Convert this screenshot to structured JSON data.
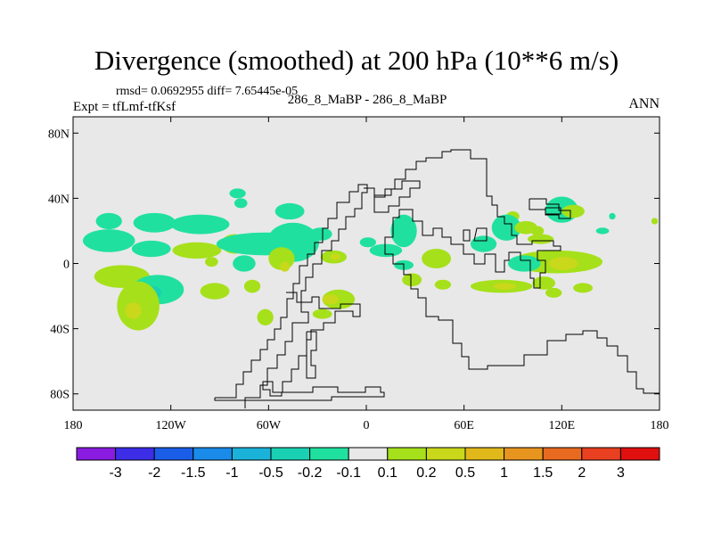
{
  "chart_data": {
    "type": "contour-map",
    "title": "Divergence (smoothed) at 200 hPa (10**6 m/s)",
    "stats": "rmsd= 0.0692955 diff= 7.65445e-05",
    "experiment": "Expt = tfLmf-tfKsf",
    "cases": "286_8_MaBP - 286_8_MaBP",
    "season": "ANN",
    "x_ticks": [
      "180",
      "120W",
      "60W",
      "0",
      "60E",
      "120E",
      "180"
    ],
    "x_tick_values": [
      -180,
      -120,
      -60,
      0,
      60,
      120,
      180
    ],
    "y_ticks": [
      "80N",
      "40N",
      "0",
      "40S",
      "80S"
    ],
    "y_tick_values": [
      80,
      40,
      0,
      -40,
      -80
    ],
    "xlim": [
      -180,
      180
    ],
    "ylim": [
      -90,
      90
    ],
    "levels": [
      "-3",
      "-2",
      "-1.5",
      "-1",
      "-0.5",
      "-0.2",
      "-0.1",
      "0.1",
      "0.2",
      "0.5",
      "1",
      "1.5",
      "2",
      "3"
    ],
    "colors": [
      "#8a1be0",
      "#3b2ee6",
      "#1a5ee8",
      "#1a8be8",
      "#1ab2d9",
      "#1ad0b2",
      "#20e0a0",
      "#e8e8e8",
      "#a6e01a",
      "#c9d81a",
      "#e0b81a",
      "#e89520",
      "#e86a20",
      "#e84020",
      "#e01010"
    ],
    "background_color": "#e8e8e8",
    "blobs": [
      {
        "lon": -158,
        "lat": 26,
        "rx": 8,
        "ry": 5,
        "level": -0.1
      },
      {
        "lon": -158,
        "lat": 14,
        "rx": 16,
        "ry": 7,
        "level": -0.1
      },
      {
        "lon": -130,
        "lat": 25,
        "rx": 13,
        "ry": 6,
        "level": -0.1
      },
      {
        "lon": -132,
        "lat": 9,
        "rx": 12,
        "ry": 5,
        "level": -0.1
      },
      {
        "lon": -150,
        "lat": -8,
        "rx": 17,
        "ry": 7,
        "level": 0.1
      },
      {
        "lon": -128,
        "lat": -16,
        "rx": 16,
        "ry": 9,
        "level": -0.1
      },
      {
        "lon": -130,
        "lat": -18,
        "rx": 4,
        "ry": 4,
        "level": -0.2
      },
      {
        "lon": -140,
        "lat": -26,
        "rx": 13,
        "ry": 15,
        "level": 0.1
      },
      {
        "lon": -143,
        "lat": -29,
        "rx": 5,
        "ry": 5,
        "level": 0.2
      },
      {
        "lon": -102,
        "lat": 24,
        "rx": 18,
        "ry": 6,
        "level": -0.1
      },
      {
        "lon": -104,
        "lat": 8,
        "rx": 15,
        "ry": 5,
        "level": 0.1
      },
      {
        "lon": -93,
        "lat": -17,
        "rx": 9,
        "ry": 5,
        "level": 0.1
      },
      {
        "lon": -95,
        "lat": 1,
        "rx": 4,
        "ry": 3,
        "level": 0.1
      },
      {
        "lon": -81,
        "lat": 12,
        "rx": 8,
        "ry": 6,
        "level": 0.1
      },
      {
        "lon": -77,
        "lat": 37,
        "rx": 4,
        "ry": 3,
        "level": -0.1
      },
      {
        "lon": -62,
        "lat": 12,
        "rx": 30,
        "ry": 7,
        "level": -0.1
      },
      {
        "lon": -75,
        "lat": 0,
        "rx": 7,
        "ry": 5,
        "level": -0.1
      },
      {
        "lon": -70,
        "lat": -14,
        "rx": 5,
        "ry": 4,
        "level": 0.1
      },
      {
        "lon": -62,
        "lat": -33,
        "rx": 5,
        "ry": 5,
        "level": 0.1
      },
      {
        "lon": -45,
        "lat": 13,
        "rx": 16,
        "ry": 12,
        "level": -0.1
      },
      {
        "lon": -47,
        "lat": 32,
        "rx": 9,
        "ry": 5,
        "level": -0.1
      },
      {
        "lon": -52,
        "lat": 3,
        "rx": 8,
        "ry": 7,
        "level": 0.1
      },
      {
        "lon": -50,
        "lat": -2,
        "rx": 3,
        "ry": 3,
        "level": 0.2
      },
      {
        "lon": -28,
        "lat": 18,
        "rx": 7,
        "ry": 4,
        "level": -0.1
      },
      {
        "lon": -20,
        "lat": 4,
        "rx": 8,
        "ry": 4,
        "level": 0.1
      },
      {
        "lon": -19,
        "lat": 4,
        "rx": 3,
        "ry": 2,
        "level": 0.2
      },
      {
        "lon": -17,
        "lat": -22,
        "rx": 10,
        "ry": 6,
        "level": 0.1
      },
      {
        "lon": -22,
        "lat": -22,
        "rx": 5,
        "ry": 3,
        "level": 0.2
      },
      {
        "lon": -27,
        "lat": -31,
        "rx": 6,
        "ry": 3,
        "level": 0.1
      },
      {
        "lon": 1,
        "lat": 13,
        "rx": 5,
        "ry": 3,
        "level": -0.1
      },
      {
        "lon": 12,
        "lat": 8,
        "rx": 10,
        "ry": 4,
        "level": -0.1
      },
      {
        "lon": 23,
        "lat": -1,
        "rx": 6,
        "ry": 3,
        "level": -0.1
      },
      {
        "lon": 23,
        "lat": 20,
        "rx": 8,
        "ry": 10,
        "level": -0.1
      },
      {
        "lon": 28,
        "lat": -10,
        "rx": 6,
        "ry": 4,
        "level": 0.1
      },
      {
        "lon": 43,
        "lat": 3,
        "rx": 9,
        "ry": 6,
        "level": 0.1
      },
      {
        "lon": 47,
        "lat": -13,
        "rx": 5,
        "ry": 3,
        "level": 0.1
      },
      {
        "lon": 72,
        "lat": 12,
        "rx": 8,
        "ry": 5,
        "level": -0.1
      },
      {
        "lon": 90,
        "lat": 29,
        "rx": 4,
        "ry": 3,
        "level": 0.1
      },
      {
        "lon": 86,
        "lat": 22,
        "rx": 9,
        "ry": 8,
        "level": -0.1
      },
      {
        "lon": 98,
        "lat": 22,
        "rx": 7,
        "ry": 4,
        "level": 0.1
      },
      {
        "lon": 105,
        "lat": 20,
        "rx": 4,
        "ry": 3,
        "level": 0.1
      },
      {
        "lon": 120,
        "lat": 33,
        "rx": 10,
        "ry": 8,
        "level": -0.1
      },
      {
        "lon": 127,
        "lat": 32,
        "rx": 7,
        "ry": 4,
        "level": 0.1
      },
      {
        "lon": 107,
        "lat": 15,
        "rx": 8,
        "ry": 3,
        "level": 0.1
      },
      {
        "lon": 117,
        "lat": 1,
        "rx": 28,
        "ry": 7,
        "level": 0.1
      },
      {
        "lon": 121,
        "lat": 0,
        "rx": 9,
        "ry": 4,
        "level": 0.2
      },
      {
        "lon": 97,
        "lat": 0,
        "rx": 10,
        "ry": 5,
        "level": -0.1
      },
      {
        "lon": 83,
        "lat": -14,
        "rx": 19,
        "ry": 4,
        "level": 0.1
      },
      {
        "lon": 85,
        "lat": -14,
        "rx": 7,
        "ry": 2,
        "level": 0.2
      },
      {
        "lon": 109,
        "lat": -12,
        "rx": 7,
        "ry": 4,
        "level": 0.1
      },
      {
        "lon": 115,
        "lat": -18,
        "rx": 5,
        "ry": 3,
        "level": 0.1
      },
      {
        "lon": 133,
        "lat": -15,
        "rx": 6,
        "ry": 3,
        "level": 0.1
      },
      {
        "lon": 145,
        "lat": 20,
        "rx": 4,
        "ry": 2,
        "level": -0.1
      },
      {
        "lon": 151,
        "lat": 29,
        "rx": 2,
        "ry": 2,
        "level": -0.1
      },
      {
        "lon": 177,
        "lat": 26,
        "rx": 2,
        "ry": 2,
        "level": 0.1
      },
      {
        "lon": -79,
        "lat": 43,
        "rx": 5,
        "ry": 3,
        "level": -0.1
      },
      {
        "lon": -104,
        "lat": 25,
        "rx": 3,
        "ry": 2,
        "level": -0.1
      }
    ]
  }
}
